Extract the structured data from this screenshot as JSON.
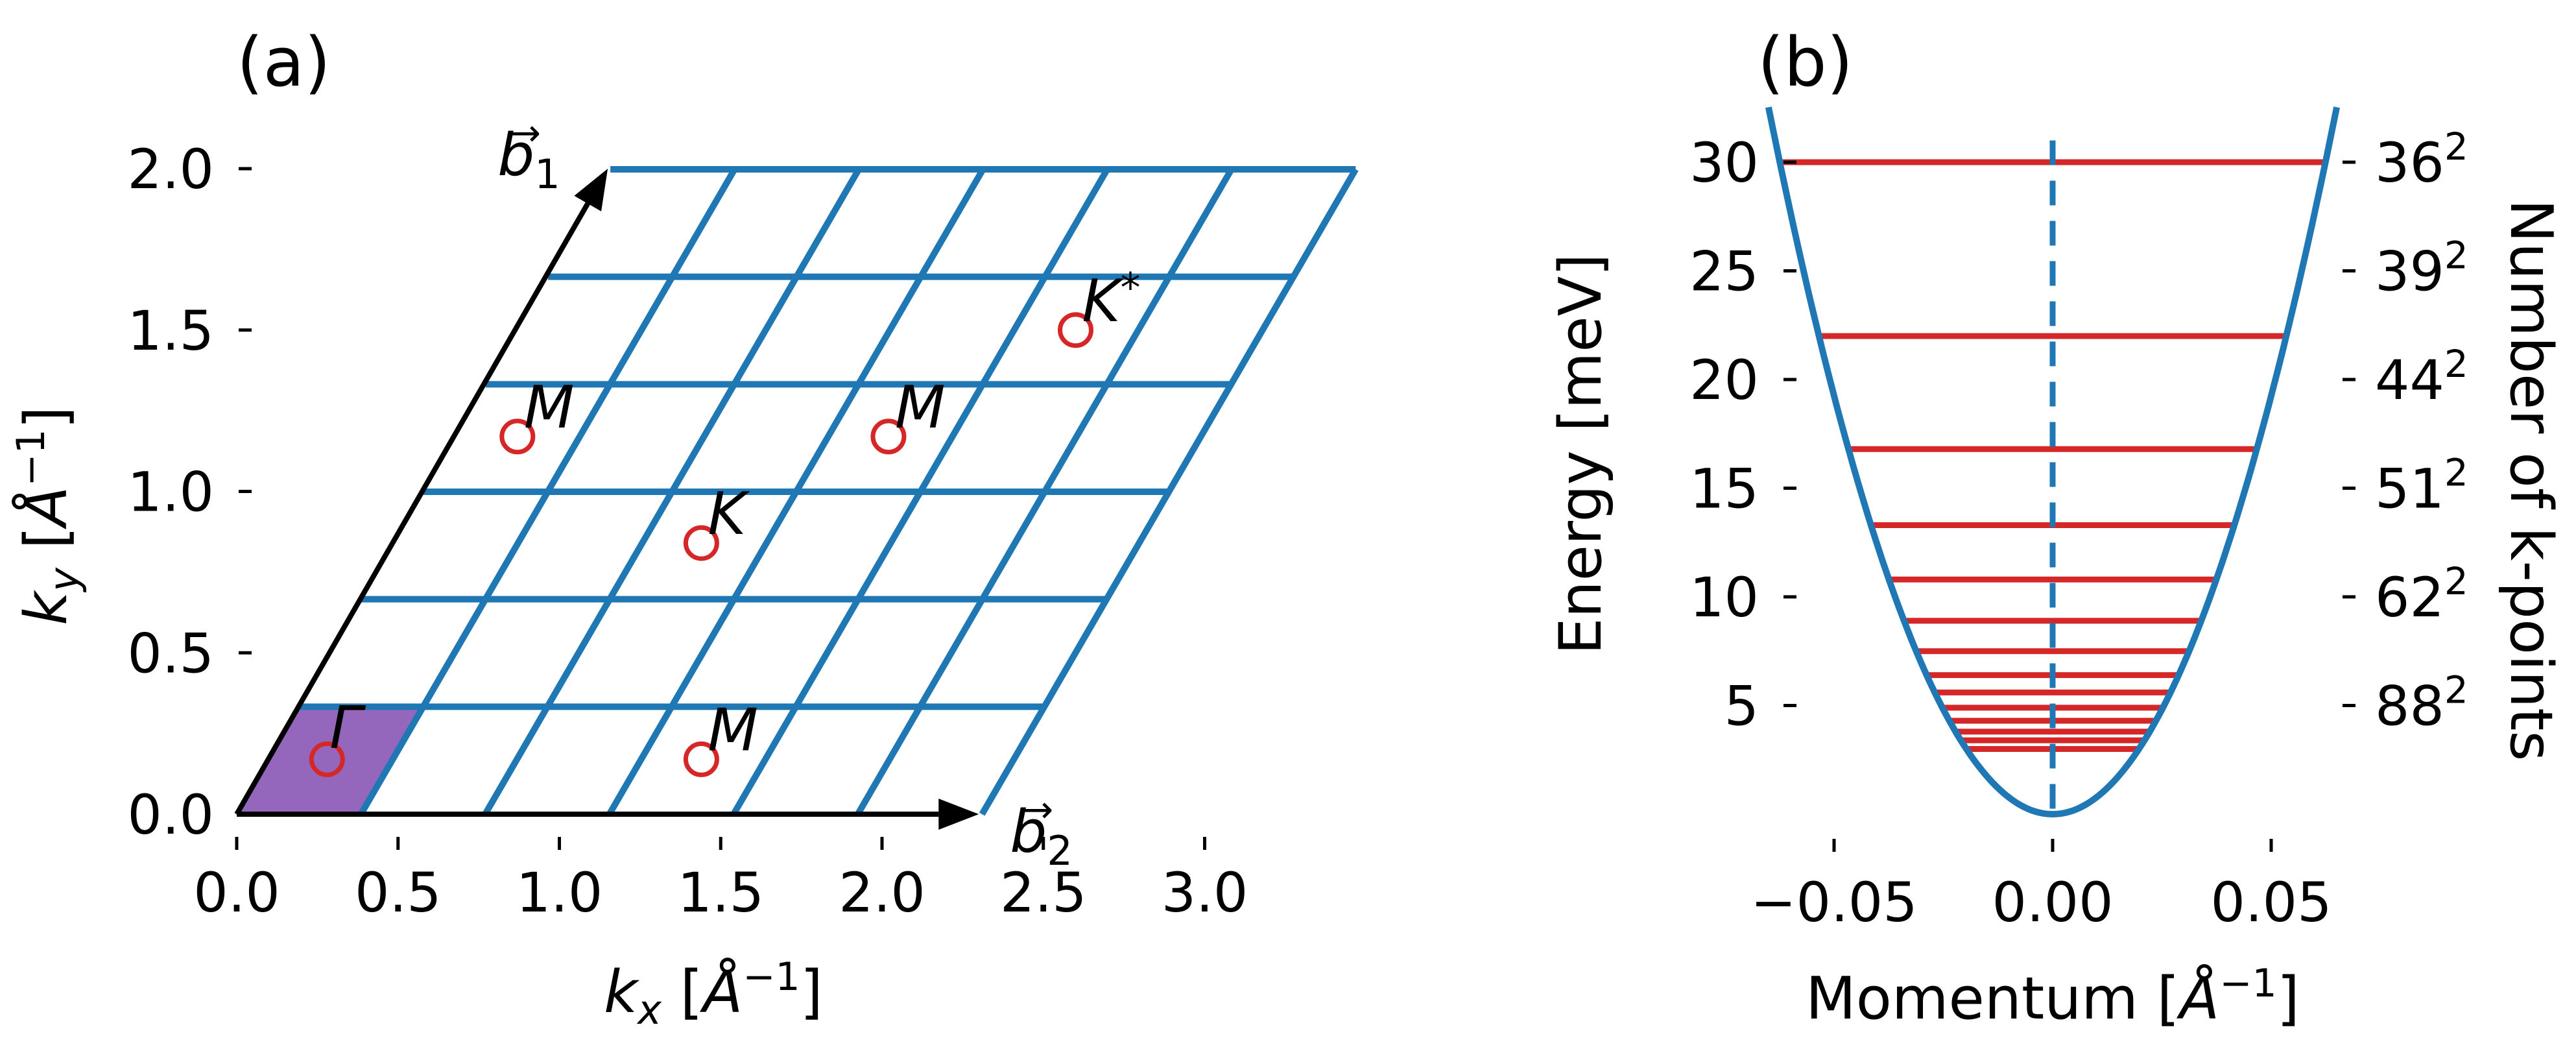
{
  "chart_data": [
    {
      "panel_label": "(a)",
      "type": "scatter",
      "xlabel": "k_x [Å^-1]",
      "ylabel": "k_y [Å^-1]",
      "x_axis_label_parts": {
        "pre": "k",
        "sub": "x",
        "mid": " [",
        "unit": "Å",
        "sup": "−1",
        "post": "]"
      },
      "y_axis_label_parts": {
        "pre": "k",
        "sub": "y",
        "mid": " [",
        "unit": "Å",
        "sup": "−1",
        "post": "]"
      },
      "xlim": [
        0.0,
        3.2
      ],
      "ylim": [
        0.0,
        2.0
      ],
      "xticks": [
        0.0,
        0.5,
        1.0,
        1.5,
        2.0,
        2.5,
        3.0
      ],
      "xtick_labels": [
        "0.0",
        "0.5",
        "1.0",
        "1.5",
        "2.0",
        "2.5",
        "3.0"
      ],
      "yticks": [
        0.0,
        0.5,
        1.0,
        1.5,
        2.0
      ],
      "ytick_labels": [
        "0.0",
        "0.5",
        "1.0",
        "1.5",
        "2.0"
      ],
      "reciprocal_vectors": [
        {
          "name": "b1",
          "label": "b",
          "sub": "1",
          "end": [
            1.15,
            2.0
          ]
        },
        {
          "name": "b2",
          "label": "b",
          "sub": "2",
          "end": [
            2.3,
            0.0
          ]
        }
      ],
      "grid": {
        "divisions": 6,
        "origin": [
          0.0,
          0.0
        ],
        "a_vec": [
          0.385,
          0.0
        ],
        "b_vec": [
          0.193,
          0.333
        ],
        "color": "#1f77b4"
      },
      "highlighted_cell": {
        "color": "#9467bd"
      },
      "points": [
        {
          "label": "Γ",
          "x": 0.28,
          "y": 0.17
        },
        {
          "label": "M",
          "x": 0.87,
          "y": 1.17
        },
        {
          "label": "M",
          "x": 2.02,
          "y": 1.17
        },
        {
          "label": "M",
          "x": 1.44,
          "y": 0.17
        },
        {
          "label": "K",
          "x": 1.44,
          "y": 0.84
        },
        {
          "label": "K*",
          "x": 2.6,
          "y": 1.5
        }
      ],
      "point_color": "#d62728"
    },
    {
      "panel_label": "(b)",
      "type": "line",
      "xlabel": "Momentum [Å^-1]",
      "ylabel": "Energy [meV]",
      "ylabel_right": "Number of k-points",
      "x_axis_label_parts": {
        "pre": "Momentum [",
        "unit": "Å",
        "sup": "−1",
        "post": "]"
      },
      "xlim": [
        -0.065,
        0.065
      ],
      "ylim": [
        0.0,
        32.0
      ],
      "xticks": [
        -0.05,
        0.0,
        0.05
      ],
      "xtick_labels": [
        "−0.05",
        "0.00",
        "0.05"
      ],
      "yticks": [
        5,
        10,
        15,
        20,
        25,
        30
      ],
      "ytick_labels": [
        "5",
        "10",
        "15",
        "20",
        "25",
        "30"
      ],
      "right_ticks": [
        {
          "y": 30.0,
          "base": "36",
          "exp": "2"
        },
        {
          "y": 25.0,
          "base": "39",
          "exp": "2"
        },
        {
          "y": 20.0,
          "base": "44",
          "exp": "2"
        },
        {
          "y": 15.0,
          "base": "51",
          "exp": "2"
        },
        {
          "y": 10.0,
          "base": "62",
          "exp": "2"
        },
        {
          "y": 5.0,
          "base": "88",
          "exp": "2"
        }
      ],
      "dispersion": {
        "name": "parabola",
        "E0": 0.0,
        "coef": 7700,
        "x_range": [
          -0.065,
          0.065
        ],
        "color": "#1f77b4"
      },
      "energy_levels": [
        30.0,
        22.0,
        16.8,
        13.3,
        10.8,
        8.9,
        7.5,
        6.4,
        5.6,
        4.9,
        4.3,
        3.8,
        3.4,
        3.0
      ],
      "level_color": "#d62728",
      "center_line": {
        "x": 0.0,
        "style": "dashed",
        "color": "#1f77b4"
      }
    }
  ]
}
